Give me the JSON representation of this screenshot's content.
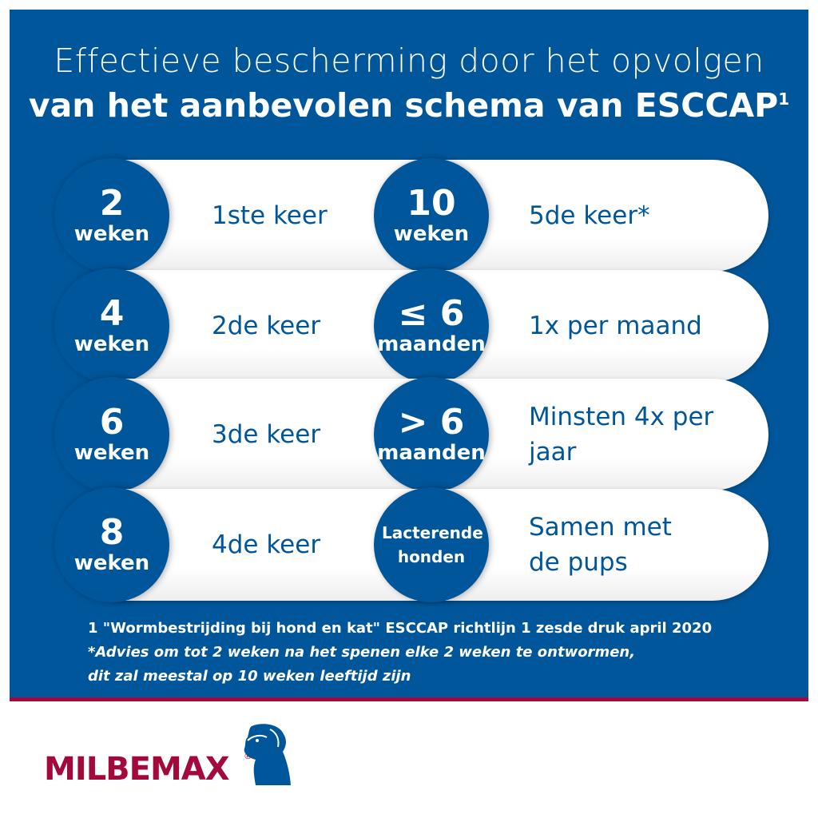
{
  "title": {
    "line1": "Effectieve bescherming door het opvolgen",
    "line2": "van het aanbevolen schema van ESCCAP",
    "line2_sup": "1"
  },
  "rows": [
    {
      "left": {
        "num": "2",
        "unit": "weken",
        "label": "1ste keer"
      },
      "right": {
        "num": "10",
        "unit": "weken",
        "label": [
          "5de keer*"
        ]
      }
    },
    {
      "left": {
        "num": "4",
        "unit": "weken",
        "label": "2de keer"
      },
      "right": {
        "num": "≤ 6",
        "unit": "maanden",
        "label": [
          "1x per maand"
        ]
      }
    },
    {
      "left": {
        "num": "6",
        "unit": "weken",
        "label": "3de keer"
      },
      "right": {
        "num": "> 6",
        "unit": "maanden",
        "label": [
          "Minsten 4x per",
          "jaar"
        ]
      }
    },
    {
      "left": {
        "num": "8",
        "unit": "weken",
        "label": "4de keer"
      },
      "right": {
        "num": "",
        "unit": "Lacterende honden",
        "label": [
          "Samen met",
          "de pups"
        ]
      }
    }
  ],
  "footnotes": [
    "1 \"Wormbestrijding bij hond en kat\" ESCCAP richtlijn 1 zesde druk april 2020",
    "*Advies om tot 2 weken na het spenen elke 2 weken te ontwormen,",
    "dit zal meestal op 10 weken leeftijd zijn"
  ],
  "logo": {
    "text": "MILBEMAX",
    "mark": "®",
    "icon": "dog-head-icon"
  },
  "colors": {
    "blue": "#00569a",
    "red": "#a3093a",
    "white": "#ffffff"
  }
}
